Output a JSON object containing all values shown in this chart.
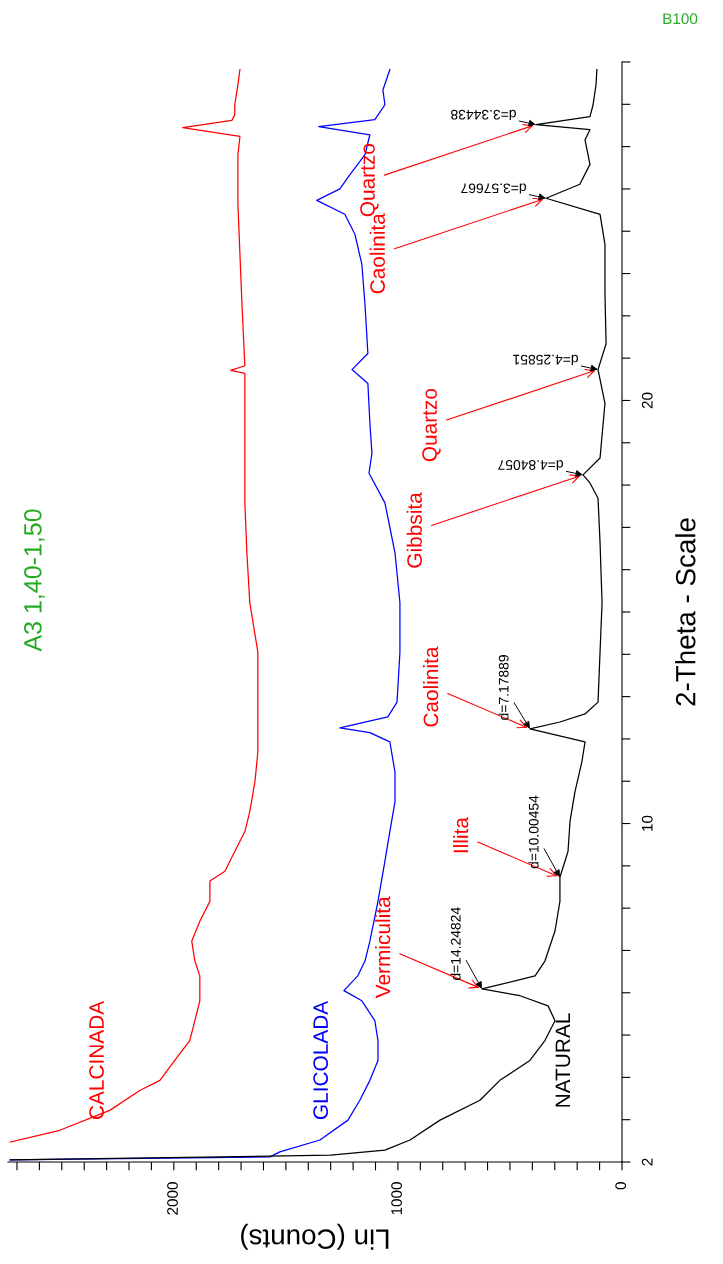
{
  "chart_data": {
    "type": "line",
    "title": "A3 1,40-1,50",
    "subtitle": "B100",
    "xlabel": "Lin (Counts)",
    "ylabel": "2-Theta - Scale",
    "xlim": [
      2740,
      0
    ],
    "ylim": [
      2,
      28
    ],
    "yticks": [
      2,
      {
        "value": 3,
        "label": null
      },
      {
        "value": 4,
        "label": null
      },
      {
        "value": 5,
        "label": null
      },
      {
        "value": 6,
        "label": null
      },
      {
        "value": 7,
        "label": null
      },
      {
        "value": 8,
        "label": null
      },
      {
        "value": 9,
        "label": null
      },
      10,
      {
        "value": 11,
        "label": null
      },
      {
        "value": 12,
        "label": null
      },
      {
        "value": 13,
        "label": null
      },
      {
        "value": 14,
        "label": null
      },
      {
        "value": 15,
        "label": null
      },
      {
        "value": 16,
        "label": null
      },
      {
        "value": 17,
        "label": null
      },
      {
        "value": 18,
        "label": null
      },
      {
        "value": 19,
        "label": null
      },
      20,
      {
        "value": 21,
        "label": null
      },
      {
        "value": 22,
        "label": null
      },
      {
        "value": 23,
        "label": null
      },
      {
        "value": 24,
        "label": null
      },
      {
        "value": 25,
        "label": null
      },
      {
        "value": 26,
        "label": null
      },
      {
        "value": 27,
        "label": null
      },
      {
        "value": 28,
        "label": null
      }
    ],
    "xticks": [
      0,
      {
        "value": 100,
        "label": null
      },
      {
        "value": 200,
        "label": null
      },
      {
        "value": 300,
        "label": null
      },
      {
        "value": 400,
        "label": null
      },
      {
        "value": 500,
        "label": null
      },
      {
        "value": 600,
        "label": null
      },
      {
        "value": 700,
        "label": null
      },
      {
        "value": 800,
        "label": null
      },
      {
        "value": 900,
        "label": null
      },
      1000,
      {
        "value": 1100,
        "label": null
      },
      {
        "value": 1200,
        "label": null
      },
      {
        "value": 1300,
        "label": null
      },
      {
        "value": 1400,
        "label": null
      },
      {
        "value": 1500,
        "label": null
      },
      {
        "value": 1600,
        "label": null
      },
      {
        "value": 1700,
        "label": null
      },
      {
        "value": 1800,
        "label": null
      },
      {
        "value": 1900,
        "label": null
      },
      2000,
      {
        "value": 2100,
        "label": null
      },
      {
        "value": 2200,
        "label": null
      },
      {
        "value": 2300,
        "label": null
      },
      {
        "value": 2400,
        "label": null
      },
      {
        "value": 2500,
        "label": null
      },
      {
        "value": 2600,
        "label": null
      },
      {
        "value": 2700,
        "label": null
      }
    ],
    "grid": false,
    "legend": false,
    "series": [
      {
        "name": "CALCINADA",
        "color": "#ff0000",
        "values": [
          2.47,
          2.75,
          3.22,
          3.69,
          3.93,
          4.4,
          4.87,
          5.34,
          5.81,
          6.4,
          6.75,
          7.22,
          7.69,
          8.16,
          8.64,
          8.87,
          9.34,
          9.81,
          10.28,
          10.99,
          11.69,
          12.87,
          14.05,
          15.22,
          16.4,
          17.58,
          18.75,
          19.93,
          20.64,
          20.71,
          20.82,
          22.28,
          23.46,
          24.64,
          25.81,
          26.24,
          26.45,
          26.62,
          26.75,
          26.99,
          27.46,
          27.82
        ],
        "x": [
          2730,
          2509,
          2286,
          2152,
          2062,
          1996,
          1929,
          1906,
          1884,
          1884,
          1906,
          1920,
          1884,
          1839,
          1839,
          1772,
          1728,
          1683,
          1661,
          1638,
          1625,
          1625,
          1625,
          1661,
          1674,
          1683,
          1683,
          1683,
          1683,
          1746,
          1683,
          1696,
          1705,
          1714,
          1714,
          1705,
          1960,
          1741,
          1728,
          1728,
          1714,
          1705
        ]
      },
      {
        "name": "GLICOLADA",
        "color": "#0000ff",
        "values": [
          2.05,
          2.12,
          2.24,
          2.52,
          2.99,
          3.46,
          3.93,
          4.4,
          4.87,
          5.34,
          5.81,
          6.05,
          6.4,
          6.75,
          7.22,
          8.16,
          9.11,
          9.81,
          10.52,
          11.22,
          11.93,
          12.15,
          12.26,
          12.52,
          12.87,
          14.05,
          15.22,
          16.4,
          17.58,
          18.28,
          18.75,
          19.46,
          20.4,
          20.73,
          21.11,
          22.28,
          23.22,
          23.93,
          24.4,
          24.73,
          25.0,
          25.34,
          25.81,
          26.28,
          26.47,
          26.64,
          26.99,
          27.34,
          27.82
        ],
        "x": [
          2730,
          1571,
          1527,
          1348,
          1223,
          1170,
          1125,
          1089,
          1089,
          1103,
          1161,
          1241,
          1179,
          1147,
          1125,
          1089,
          1058,
          1036,
          1013,
          1013,
          1036,
          1125,
          1259,
          1045,
          1004,
          991,
          991,
          1013,
          1058,
          1129,
          1116,
          1125,
          1134,
          1205,
          1134,
          1147,
          1161,
          1192,
          1237,
          1362,
          1259,
          1214,
          1147,
          1125,
          1353,
          1103,
          1058,
          1067,
          1036
        ]
      },
      {
        "name": "NATURAL",
        "color": "#000000",
        "values": [
          2.05,
          2.16,
          2.28,
          2.52,
          2.99,
          3.46,
          3.93,
          4.4,
          4.87,
          5.34,
          5.69,
          5.93,
          6.09,
          6.4,
          6.75,
          7.46,
          8.16,
          8.73,
          9.34,
          10.05,
          10.75,
          11.46,
          11.93,
          12.24,
          12.4,
          12.59,
          12.87,
          14.05,
          15.22,
          16.64,
          17.69,
          18.05,
          18.24,
          18.64,
          19.93,
          20.73,
          21.34,
          22.52,
          23.69,
          24.4,
          24.78,
          25.11,
          25.58,
          26.16,
          26.4,
          26.52,
          26.71,
          26.99,
          27.46,
          27.82
        ],
        "x": [
          2730,
          1300,
          1058,
          946,
          812,
          634,
          545,
          411,
          344,
          299,
          330,
          455,
          625,
          388,
          344,
          299,
          277,
          277,
          241,
          232,
          210,
          179,
          165,
          411,
          277,
          165,
          107,
          98,
          89,
          98,
          107,
          143,
          174,
          98,
          76,
          107,
          71,
          76,
          76,
          98,
          339,
          188,
          143,
          165,
          143,
          384,
          143,
          129,
          116,
          112
        ]
      }
    ],
    "annotations": [
      {
        "text": "Vermiculita",
        "x": 625,
        "y": 6.09
      },
      {
        "text": "d=14.24824",
        "x": 625,
        "y": 6.09
      },
      {
        "text": "Illita",
        "x": 277,
        "y": 8.73
      },
      {
        "text": "d=10.00454",
        "x": 277,
        "y": 8.73
      },
      {
        "text": "Caolinita",
        "x": 411,
        "y": 12.24
      },
      {
        "text": "d=7.17889",
        "x": 411,
        "y": 12.24
      },
      {
        "text": "Gibbsita",
        "x": 174,
        "y": 18.24
      },
      {
        "text": "d=4.84057",
        "x": 174,
        "y": 18.24
      },
      {
        "text": "Quartzo",
        "x": 107,
        "y": 20.73
      },
      {
        "text": "d=4.25851",
        "x": 107,
        "y": 20.73
      },
      {
        "text": "Caolinita",
        "x": 339,
        "y": 24.78
      },
      {
        "text": "d=3.57667",
        "x": 339,
        "y": 24.78
      },
      {
        "text": "Quartzo",
        "x": 384,
        "y": 26.52
      },
      {
        "text": "d=3.34438",
        "x": 384,
        "y": 26.52
      }
    ]
  }
}
